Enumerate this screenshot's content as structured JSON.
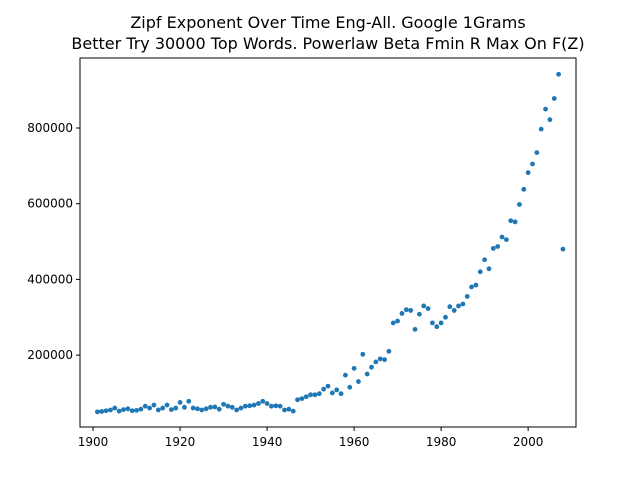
{
  "chart_data": {
    "type": "scatter",
    "title": "Zipf Exponent Over Time Eng-All. Google 1Grams",
    "subtitle": "Better Try 30000 Top Words. Powerlaw Beta Fmin R Max On F(Z)",
    "xlabel": "",
    "ylabel": "",
    "xlim": [
      1897,
      2011
    ],
    "ylim": [
      10000,
      985000
    ],
    "xticks": [
      1900,
      1920,
      1940,
      1960,
      1980,
      2000
    ],
    "xtick_labels": [
      "1900",
      "1920",
      "1940",
      "1960",
      "1980",
      "2000"
    ],
    "yticks": [
      200000,
      400000,
      600000,
      800000
    ],
    "ytick_labels": [
      "200000",
      "400000",
      "600000",
      "800000"
    ],
    "grid": false,
    "marker_color": "#1f77b4",
    "series": [
      {
        "x": [
          1901,
          1902,
          1903,
          1904,
          1905,
          1906,
          1907,
          1908,
          1909,
          1910,
          1911,
          1912,
          1913,
          1914,
          1915,
          1916,
          1917,
          1918,
          1919,
          1920,
          1921,
          1922,
          1923,
          1924,
          1925,
          1926,
          1927,
          1928,
          1929,
          1930,
          1931,
          1932,
          1933,
          1934,
          1935,
          1936,
          1937,
          1938,
          1939,
          1940,
          1941,
          1942,
          1943,
          1944,
          1945,
          1946,
          1947,
          1948,
          1949,
          1950,
          1951,
          1952,
          1953,
          1954,
          1955,
          1956,
          1957,
          1958,
          1959,
          1960,
          1961,
          1962,
          1963,
          1964,
          1965,
          1966,
          1967,
          1968,
          1969,
          1970,
          1971,
          1972,
          1973,
          1974,
          1975,
          1976,
          1977,
          1978,
          1979,
          1980,
          1981,
          1982,
          1983,
          1984,
          1985,
          1986,
          1987,
          1988,
          1989,
          1990,
          1991,
          1992,
          1993,
          1994,
          1995,
          1996,
          1997,
          1998,
          1999,
          2000,
          2001,
          2002,
          2003,
          2004,
          2005,
          2006,
          2007,
          2008
        ],
        "y": [
          50000,
          51000,
          53000,
          55000,
          60000,
          52000,
          56000,
          58000,
          53000,
          54000,
          57000,
          65000,
          60000,
          68000,
          55000,
          60000,
          68000,
          56000,
          60000,
          75000,
          62000,
          78000,
          60000,
          58000,
          55000,
          58000,
          62000,
          63000,
          57000,
          70000,
          65000,
          62000,
          55000,
          60000,
          65000,
          66000,
          68000,
          72000,
          78000,
          72000,
          65000,
          66000,
          65000,
          55000,
          57000,
          52000,
          82000,
          85000,
          90000,
          95000,
          95000,
          98000,
          110000,
          118000,
          100000,
          108000,
          98000,
          147000,
          115000,
          165000,
          130000,
          202000,
          150000,
          168000,
          182000,
          190000,
          188000,
          210000,
          285000,
          290000,
          310000,
          320000,
          318000,
          268000,
          308000,
          330000,
          323000,
          285000,
          275000,
          285000,
          300000,
          328000,
          318000,
          330000,
          335000,
          355000,
          380000,
          385000,
          420000,
          452000,
          428000,
          482000,
          487000,
          512000,
          505000,
          555000,
          552000,
          598000,
          638000,
          682000,
          705000,
          735000,
          797000,
          850000,
          822000,
          878000,
          942000,
          480000
        ]
      }
    ]
  }
}
